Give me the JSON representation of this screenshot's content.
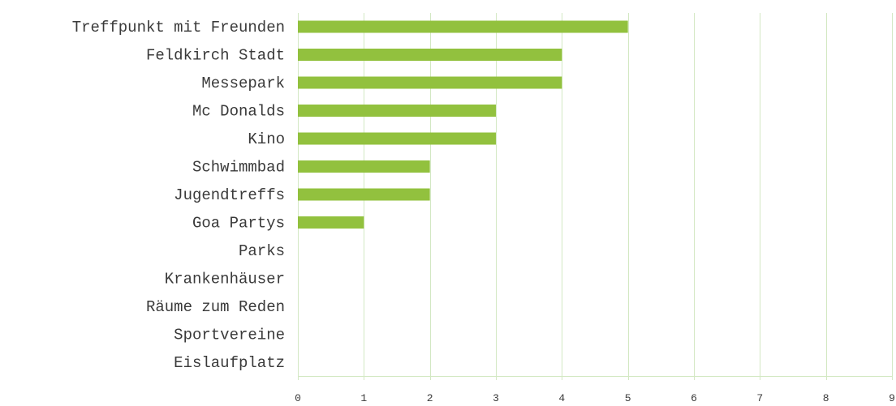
{
  "chart_data": {
    "type": "bar",
    "orientation": "horizontal",
    "categories": [
      "Treffpunkt mit Freunden",
      "Feldkirch Stadt",
      "Messepark",
      "Mc Donalds",
      "Kino",
      "Schwimmbad",
      "Jugendtreffs",
      "Goa Partys",
      "Parks",
      "Krankenhäuser",
      "Räume zum Reden",
      "Sportvereine",
      "Eislaufplatz"
    ],
    "values": [
      5,
      4,
      4,
      3,
      3,
      2,
      2,
      1,
      0,
      0,
      0,
      0,
      0
    ],
    "xlim": [
      0,
      9
    ],
    "xticks": [
      0,
      1,
      2,
      3,
      4,
      5,
      6,
      7,
      8,
      9
    ],
    "grid": true,
    "legend": "none",
    "title": "",
    "xlabel": "",
    "ylabel": "",
    "colors": {
      "bar": "#92c13e",
      "grid": "#d3e8c3",
      "text": "#3a3a3a"
    }
  }
}
